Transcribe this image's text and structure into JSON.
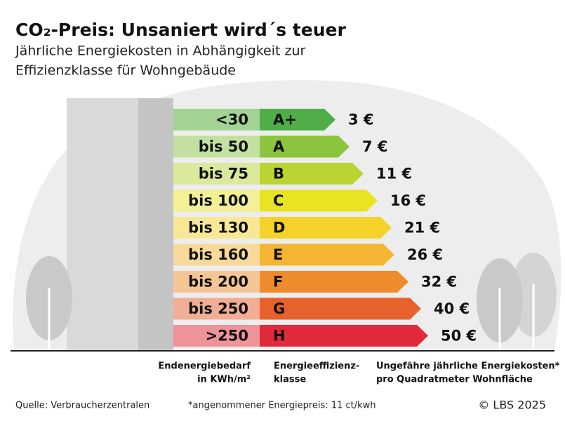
{
  "header": {
    "title": "CO₂-Preis: Unsaniert wird´s teuer",
    "subtitle_lines": [
      "Jährliche Energiekosten in Abhängigkeit zur",
      "Effizienzklasse für Wohngebäude"
    ]
  },
  "rows": [
    {
      "demand": "<30",
      "class": "A+",
      "cost": "3 €",
      "color": "#4fae47",
      "light": "#a3d394"
    },
    {
      "demand": "bis 50",
      "class": "A",
      "cost": "7 €",
      "color": "#8cc43e",
      "light": "#c4e0a0"
    },
    {
      "demand": "bis 75",
      "class": "B",
      "cost": "11 €",
      "color": "#bcd431",
      "light": "#dbe99a"
    },
    {
      "demand": "bis 100",
      "class": "C",
      "cost": "16 €",
      "color": "#e9e423",
      "light": "#f3f096"
    },
    {
      "demand": "bis 130",
      "class": "D",
      "cost": "21 €",
      "color": "#f4d22a",
      "light": "#f8e795"
    },
    {
      "demand": "bis 160",
      "class": "E",
      "cost": "26 €",
      "color": "#f4b632",
      "light": "#f9d99a"
    },
    {
      "demand": "bis 200",
      "class": "F",
      "cost": "32 €",
      "color": "#ee8c2d",
      "light": "#f6c596"
    },
    {
      "demand": "bis 250",
      "class": "G",
      "cost": "40 €",
      "color": "#e6612c",
      "light": "#f2ae94"
    },
    {
      "demand": ">250",
      "class": "H",
      "cost": "50 €",
      "color": "#e12a3b",
      "light": "#ef939a"
    }
  ],
  "column_headers": [
    [
      "Endenergiebedarf",
      "in KWh/m²"
    ],
    [
      "Energieeffizienz-",
      "klasse"
    ],
    [
      "Ungefähre jährliche Energiekosten*",
      "pro Quadratmeter Wohnfläche"
    ]
  ],
  "footer": {
    "source": "Quelle: Verbraucherzentralen",
    "note": "*angenommener Energiepreis: 11 ct/kwh",
    "credit": "© LBS 2025"
  }
}
